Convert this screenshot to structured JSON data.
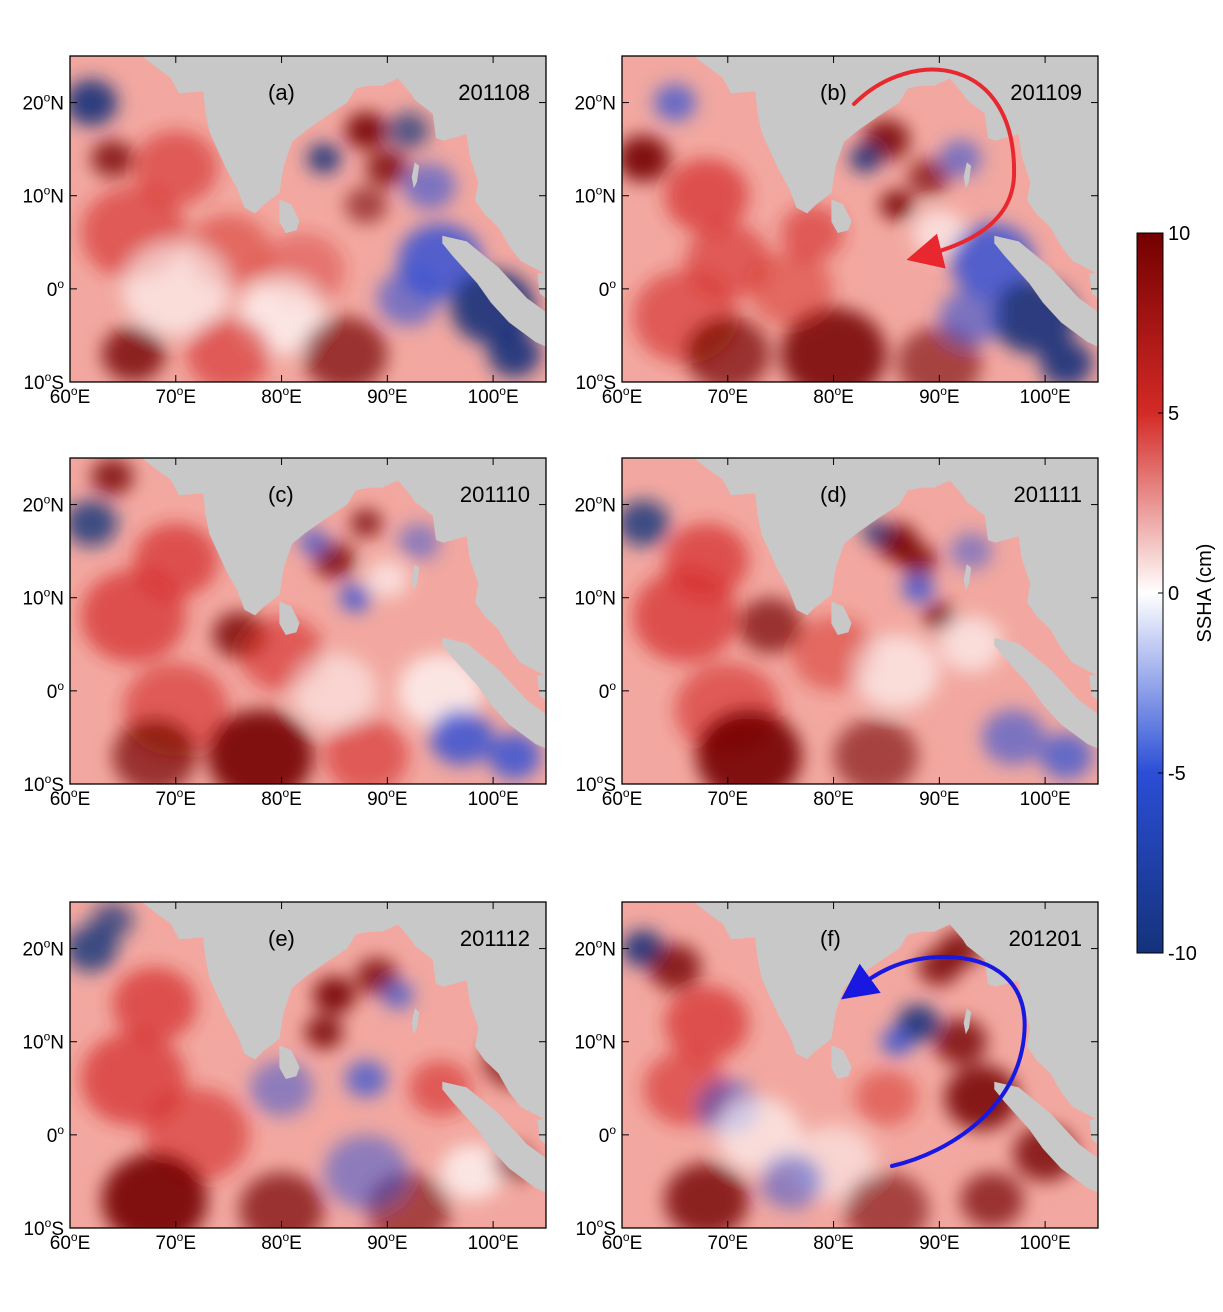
{
  "figure": {
    "panels": [
      {
        "label": "(a)",
        "date": "201108",
        "arrow": null
      },
      {
        "label": "(b)",
        "date": "201109",
        "arrow": {
          "color": "#e8282e",
          "description": "clockwise"
        }
      },
      {
        "label": "(c)",
        "date": "201110",
        "arrow": null
      },
      {
        "label": "(d)",
        "date": "201111",
        "arrow": null
      },
      {
        "label": "(e)",
        "date": "201112",
        "arrow": null
      },
      {
        "label": "(f)",
        "date": "201201",
        "arrow": {
          "color": "#1818e0",
          "description": "anticlockwise"
        }
      }
    ],
    "axes": {
      "lon_ticks": [
        {
          "value": 60,
          "num": "60",
          "sup": "o",
          "hem": "E"
        },
        {
          "value": 70,
          "num": "70",
          "sup": "o",
          "hem": "E"
        },
        {
          "value": 80,
          "num": "80",
          "sup": "o",
          "hem": "E"
        },
        {
          "value": 90,
          "num": "90",
          "sup": "o",
          "hem": "E"
        },
        {
          "value": 100,
          "num": "100",
          "sup": "o",
          "hem": "E"
        }
      ],
      "lat_ticks": [
        {
          "value": 20,
          "num": "20",
          "sup": "o",
          "hem": "N"
        },
        {
          "value": 10,
          "num": "10",
          "sup": "o",
          "hem": "N"
        },
        {
          "value": 0,
          "num": "0",
          "sup": "o",
          "hem": ""
        },
        {
          "value": -10,
          "num": "10",
          "sup": "o",
          "hem": "S"
        }
      ],
      "lon_range": [
        60,
        105
      ],
      "lat_range": [
        -10,
        25
      ]
    },
    "colorbar": {
      "label": "SSHA (cm)",
      "ticks": [
        "10",
        "5",
        "0",
        "-5",
        "-10"
      ],
      "range": [
        -10,
        10
      ],
      "colors": {
        "max": "#730000",
        "high": "#d42a26",
        "mid": "#ffffff",
        "low": "#2b4ed6",
        "min": "#14327a"
      }
    },
    "land_color": "#c8c8c8"
  }
}
